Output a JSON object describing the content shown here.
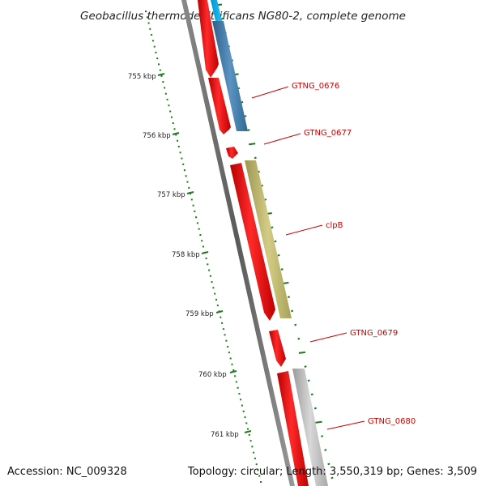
{
  "title": "Geobacillus thermodenitrificans NG80-2, complete genome",
  "accession": "Accession: NC_009328",
  "summary": "Topology: circular; Length: 3,550,319 bp; Genes: 3,509",
  "ruler": {
    "unit": "kbp",
    "labels": [
      "755 kbp",
      "756 kbp",
      "757 kbp",
      "758 kbp",
      "759 kbp",
      "760 kbp",
      "761 kbp"
    ]
  },
  "genes": [
    {
      "name": "GTNG_0676",
      "cds_color": "#e60000",
      "product_color": "#4682b4"
    },
    {
      "name": "GTNG_0677",
      "cds_color": "#e60000"
    },
    {
      "name": "clpB",
      "cds_color": "#e60000",
      "product_color": "#bdb76b"
    },
    {
      "name": "GTNG_0679",
      "cds_color": "#e60000"
    },
    {
      "name": "GTNG_0680",
      "cds_color": "#e60000",
      "product_color": "#b4b4b4"
    }
  ],
  "colors": {
    "backbone": "#666666",
    "cds": "#e60000",
    "ruler": "#1a7a1a",
    "label": "#cc0000",
    "top_feature": "#00bfff"
  }
}
